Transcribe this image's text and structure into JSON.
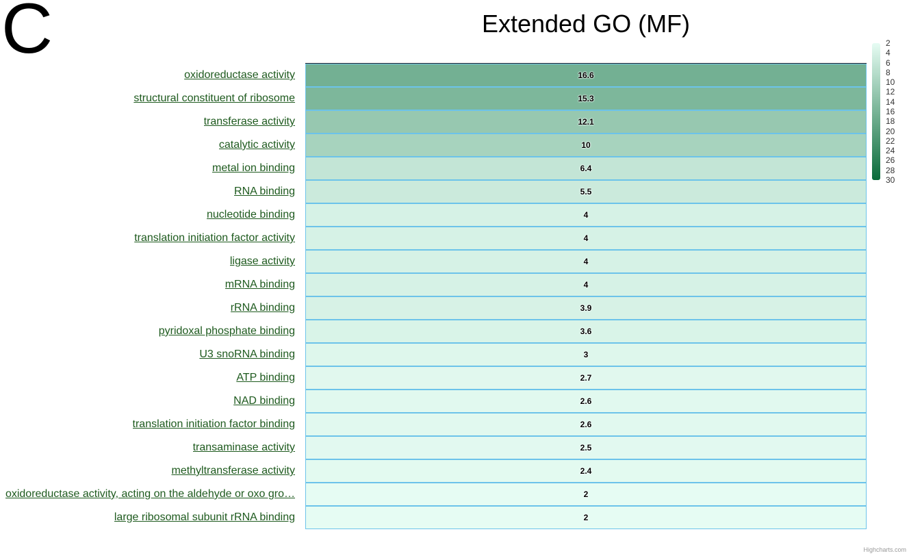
{
  "panel_letter": "C",
  "credits": "Highcharts.com",
  "chart_data": {
    "type": "heatmap",
    "title": "Extended GO (MF)",
    "categories": [
      "oxidoreductase activity",
      "structural constituent of ribosome",
      "transferase activity",
      "catalytic activity",
      "metal ion binding",
      "RNA binding",
      "nucleotide binding",
      "translation initiation factor activity",
      "ligase activity",
      "mRNA binding",
      "rRNA binding",
      "pyridoxal phosphate binding",
      "U3 snoRNA binding",
      "ATP binding",
      "NAD binding",
      "translation initiation factor binding",
      "transaminase activity",
      "methyltransferase activity",
      "oxidoreductase activity, acting on the aldehyde or oxo gro…",
      "large ribosomal subunit rRNA binding"
    ],
    "values": [
      16.6,
      15.3,
      12.1,
      10,
      6.4,
      5.5,
      4,
      4,
      4,
      4,
      3.9,
      3.6,
      3,
      2.7,
      2.6,
      2.6,
      2.5,
      2.4,
      2,
      2
    ],
    "colorAxis": {
      "min": 2,
      "max": 30,
      "minColor": "#e6fcf3",
      "maxColor": "#0a6b3a",
      "ticks": [
        "2",
        "4",
        "6",
        "8",
        "10",
        "12",
        "14",
        "16",
        "18",
        "20",
        "22",
        "24",
        "26",
        "28",
        "30"
      ],
      "position": "right"
    },
    "dataLabels": true,
    "cell_border_color": "#6cc3ea",
    "label_color": "#1e5a1e"
  }
}
